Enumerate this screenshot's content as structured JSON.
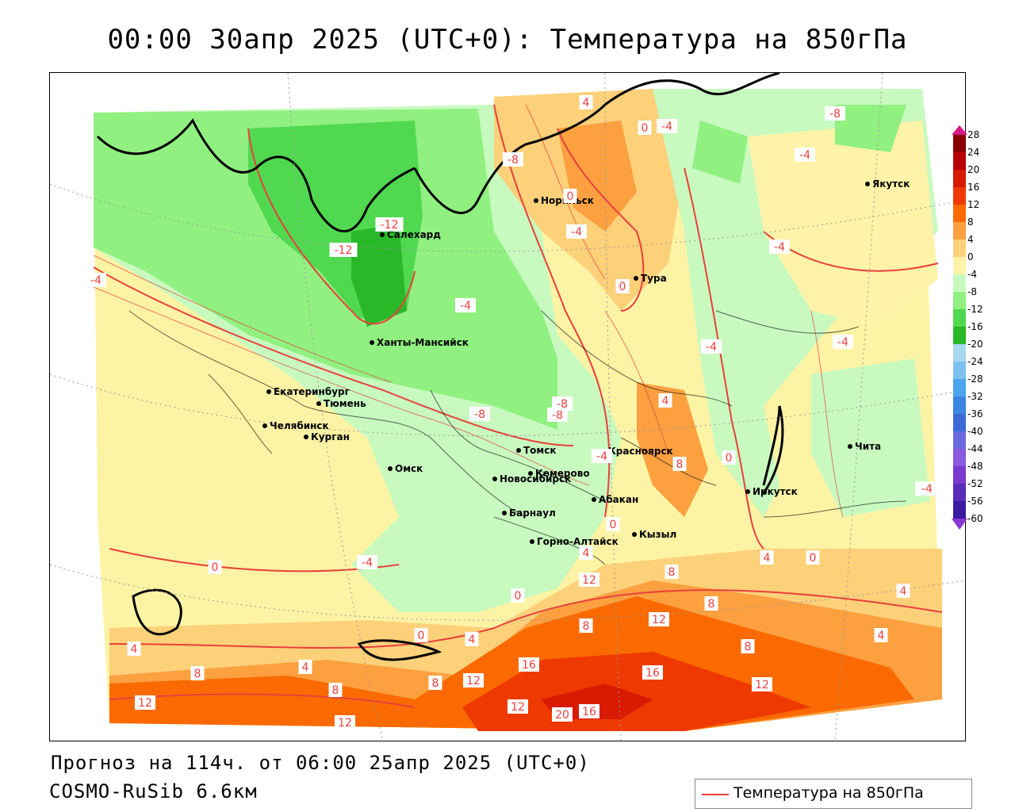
{
  "title": "00:00 30апр 2025 (UTC+0): Температура на 850гПа",
  "footer": {
    "forecast": "Прогноз на 114ч. от 06:00 25апр 2025 (UTC+0)",
    "model": "COSMO-RuSib 6.6км"
  },
  "legend": {
    "label": "Температура на 850гПа",
    "color": "#e8403c"
  },
  "colorbar": {
    "ticks": [
      "28",
      "24",
      "20",
      "16",
      "12",
      "8",
      "4",
      "0",
      "-4",
      "-8",
      "-12",
      "-16",
      "-20",
      "-24",
      "-28",
      "-32",
      "-36",
      "-40",
      "-44",
      "-48",
      "-52",
      "-56",
      "-60"
    ],
    "colors": [
      "#8b0000",
      "#b80000",
      "#d81a00",
      "#ee3a00",
      "#fb6a00",
      "#fca040",
      "#fdd07a",
      "#fef3a8",
      "#c8fac0",
      "#90f080",
      "#50d850",
      "#28b828",
      "#a8d8f0",
      "#7cc0f0",
      "#4ca4ec",
      "#3a86e0",
      "#3a6ad8",
      "#6a6ae0",
      "#8a5ae0",
      "#7a3ad0",
      "#5a2ab8",
      "#3a1aa0"
    ]
  },
  "cities": [
    {
      "name": "Якутск"
    },
    {
      "name": "Норильск"
    },
    {
      "name": "Салехард"
    },
    {
      "name": "Тура"
    },
    {
      "name": "Ханты-Мансийск"
    },
    {
      "name": "Екатеринбург"
    },
    {
      "name": "Тюмень"
    },
    {
      "name": "Челябинск"
    },
    {
      "name": "Курган"
    },
    {
      "name": "Томск"
    },
    {
      "name": "Красноярск"
    },
    {
      "name": "Омск"
    },
    {
      "name": "Новосибирск"
    },
    {
      "name": "Кемерово"
    },
    {
      "name": "Абакан"
    },
    {
      "name": "Иркутск"
    },
    {
      "name": "Чита"
    },
    {
      "name": "Барнаул"
    },
    {
      "name": "Горно-Алтайск"
    },
    {
      "name": "Кызыл"
    }
  ],
  "isotherm_labels": [
    "4",
    "0",
    "-4",
    "-8",
    "-8",
    "-4",
    "0",
    "-4",
    "-12",
    "-12",
    "-4",
    "-4",
    "0",
    "-4",
    "-8",
    "-4",
    "-4",
    "-8",
    "-8",
    "4",
    "-4",
    "8",
    "0",
    "-4",
    "0",
    "4",
    "-4",
    "0",
    "4",
    "8",
    "12",
    "8",
    "0",
    "0",
    "4",
    "8",
    "8",
    "12",
    "4",
    "0",
    "4",
    "8",
    "4",
    "8",
    "12",
    "16",
    "12",
    "16",
    "12",
    "12",
    "20",
    "16",
    "12",
    "8",
    "4",
    "-4"
  ]
}
